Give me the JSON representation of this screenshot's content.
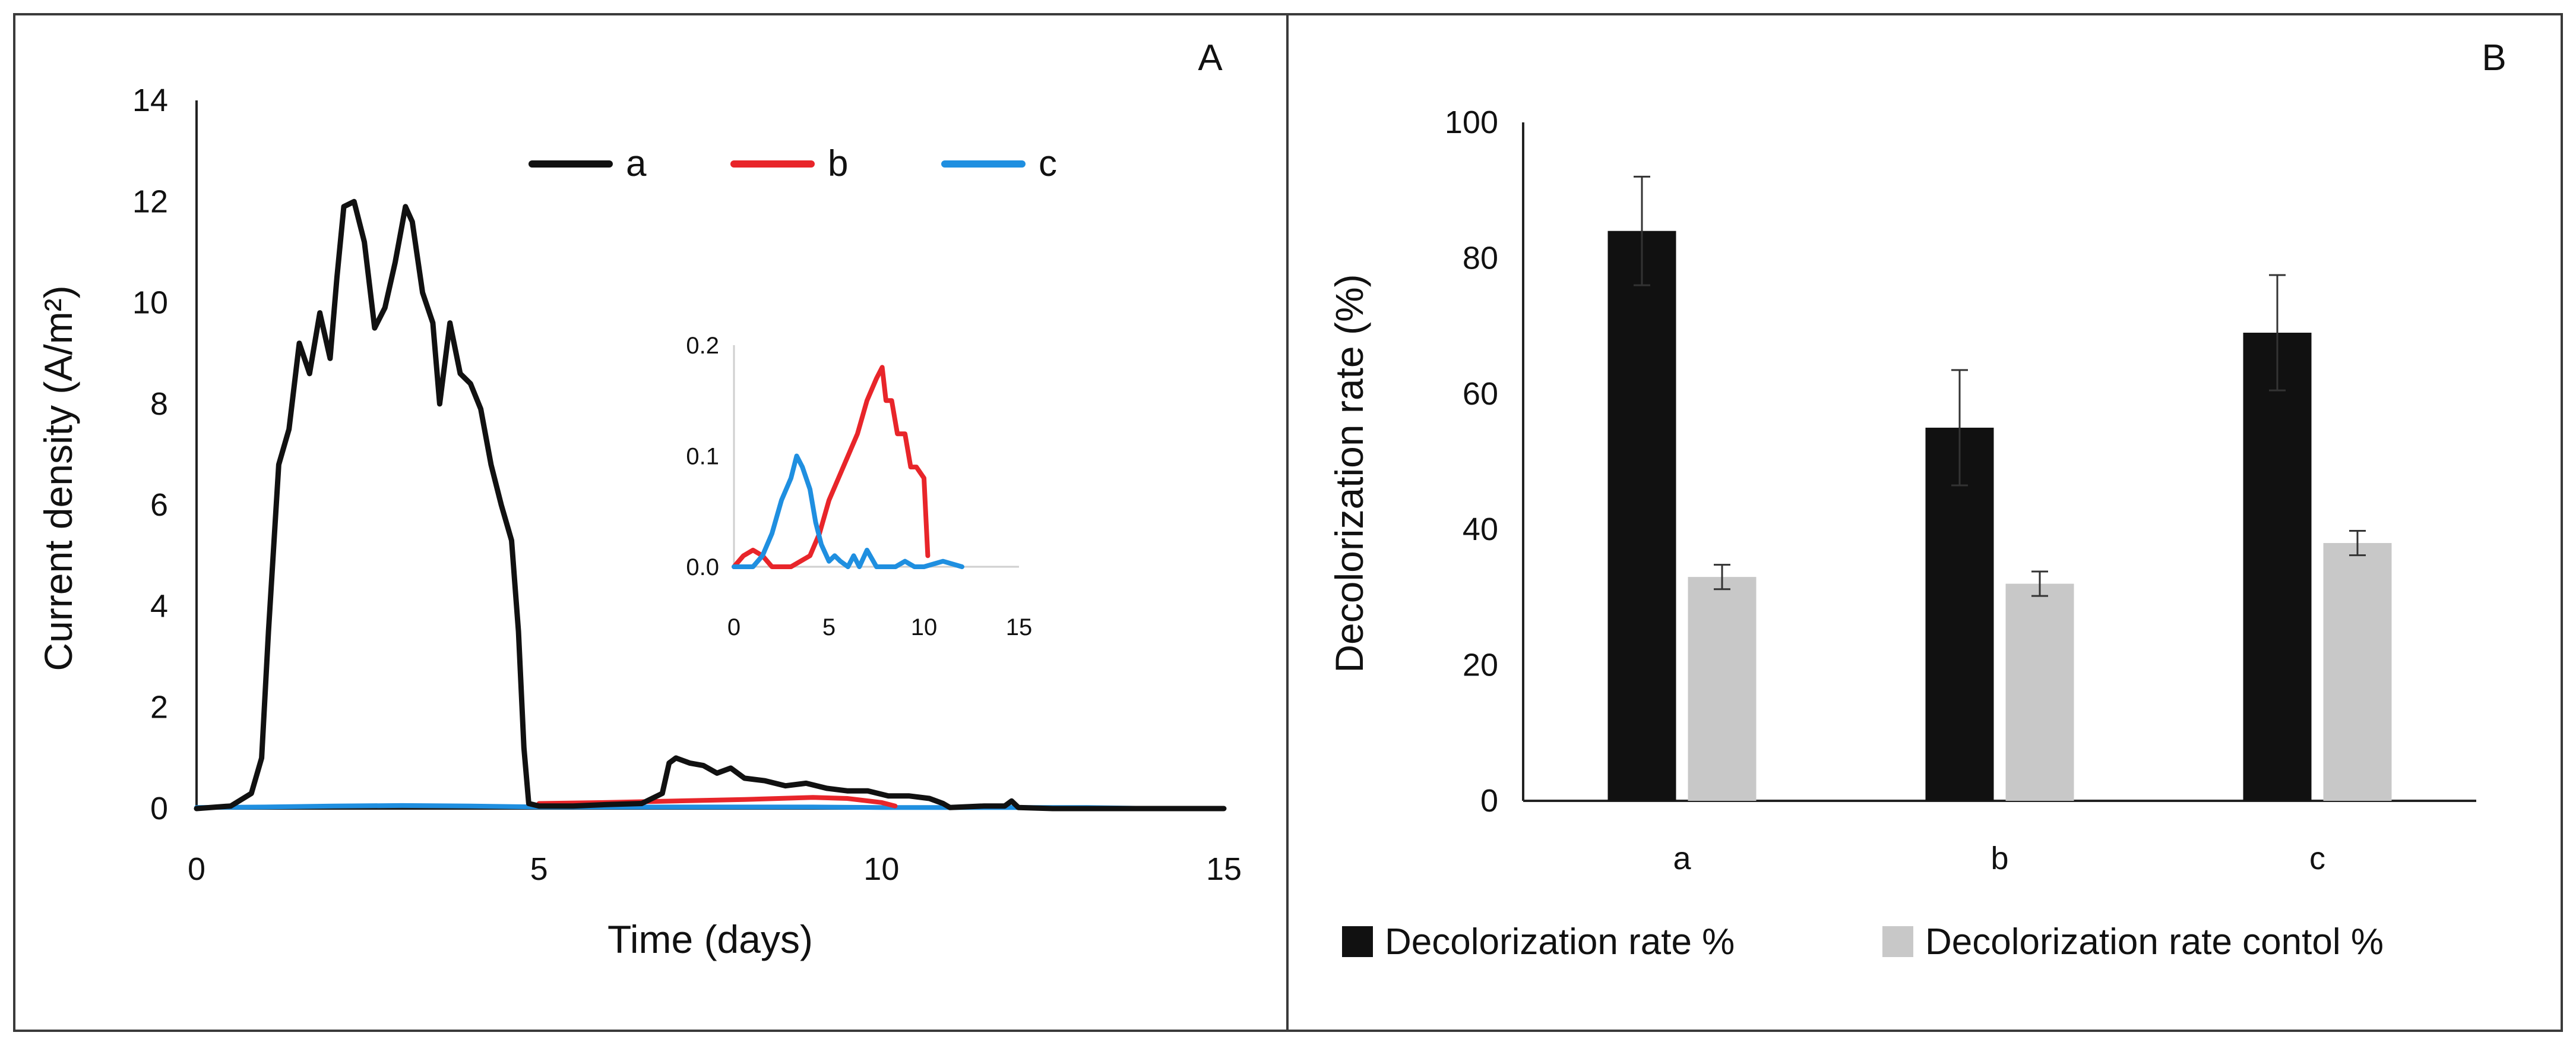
{
  "colors": {
    "a": "#111111",
    "b": "#e8252a",
    "c": "#1f8fe0",
    "control": "#c8c8c8",
    "axis": "#222222"
  },
  "chart_data": [
    {
      "panel": "A",
      "type": "line",
      "xlabel": "Time (days)",
      "ylabel": "Current density (A/m²)",
      "xlim": [
        0,
        15
      ],
      "ylim": [
        0,
        14
      ],
      "xticks": [
        "0",
        "5",
        "10",
        "15"
      ],
      "yticks": [
        "0",
        "2",
        "4",
        "6",
        "8",
        "10",
        "12",
        "14"
      ],
      "legend": [
        "a",
        "b",
        "c"
      ],
      "series": [
        {
          "name": "a",
          "color": "#111111",
          "x": [
            0,
            0.5,
            0.8,
            0.95,
            1.05,
            1.2,
            1.35,
            1.5,
            1.65,
            1.8,
            1.95,
            2.05,
            2.15,
            2.3,
            2.45,
            2.6,
            2.75,
            2.9,
            3.05,
            3.15,
            3.3,
            3.45,
            3.55,
            3.7,
            3.85,
            4.0,
            4.15,
            4.3,
            4.45,
            4.6,
            4.7,
            4.78,
            4.85,
            5.0,
            5.5,
            6.0,
            6.5,
            6.8,
            6.9,
            7.0,
            7.2,
            7.4,
            7.6,
            7.8,
            8.0,
            8.3,
            8.6,
            8.9,
            9.2,
            9.5,
            9.8,
            10.1,
            10.4,
            10.7,
            10.9,
            11.0,
            11.5,
            11.8,
            11.9,
            12.0,
            12.5,
            15
          ],
          "y": [
            0,
            0.05,
            0.3,
            1.0,
            3.5,
            6.8,
            7.5,
            9.2,
            8.6,
            9.8,
            8.9,
            10.5,
            11.9,
            12.0,
            11.2,
            9.5,
            9.9,
            10.8,
            11.9,
            11.6,
            10.2,
            9.6,
            8.0,
            9.6,
            8.6,
            8.4,
            7.9,
            6.8,
            6.0,
            5.3,
            3.5,
            1.2,
            0.1,
            0.05,
            0.05,
            0.08,
            0.1,
            0.3,
            0.9,
            1.0,
            0.9,
            0.85,
            0.7,
            0.8,
            0.6,
            0.55,
            0.45,
            0.5,
            0.4,
            0.35,
            0.35,
            0.25,
            0.25,
            0.2,
            0.1,
            0.02,
            0.05,
            0.05,
            0.15,
            0.02,
            0.0,
            0.0
          ]
        },
        {
          "name": "b",
          "color": "#e8252a",
          "x": [
            5,
            6,
            7,
            8,
            8.5,
            9,
            9.5,
            10,
            10.2
          ],
          "y": [
            0.1,
            0.12,
            0.15,
            0.18,
            0.2,
            0.22,
            0.2,
            0.12,
            0.05
          ]
        },
        {
          "name": "c",
          "color": "#1f8fe0",
          "x": [
            0,
            1,
            2,
            3,
            4,
            5,
            6,
            7,
            8,
            9,
            10,
            11,
            12,
            13,
            14,
            15
          ],
          "y": [
            0.02,
            0.03,
            0.05,
            0.06,
            0.05,
            0.03,
            0.03,
            0.03,
            0.03,
            0.03,
            0.02,
            0.02,
            0.02,
            0.02,
            0.0,
            0.0
          ]
        }
      ],
      "inset": {
        "xlim": [
          0,
          15
        ],
        "ylim": [
          0,
          0.2
        ],
        "xticks": [
          "0",
          "5",
          "10",
          "15"
        ],
        "yticks": [
          "0.0",
          "0.1",
          "0.2"
        ],
        "series": [
          {
            "name": "b",
            "color": "#e8252a",
            "x": [
              0,
              0.5,
              1.0,
              1.5,
              2.0,
              3.0,
              4.0,
              4.5,
              5.0,
              5.5,
              6.0,
              6.5,
              7.0,
              7.5,
              7.8,
              8.0,
              8.3,
              8.6,
              9.0,
              9.3,
              9.6,
              10.0,
              10.2
            ],
            "y": [
              0.0,
              0.01,
              0.015,
              0.01,
              0.0,
              0.0,
              0.01,
              0.03,
              0.06,
              0.08,
              0.1,
              0.12,
              0.15,
              0.17,
              0.18,
              0.15,
              0.15,
              0.12,
              0.12,
              0.09,
              0.09,
              0.08,
              0.01
            ]
          },
          {
            "name": "c",
            "color": "#1f8fe0",
            "x": [
              0,
              1.0,
              1.5,
              2.0,
              2.5,
              3.0,
              3.3,
              3.6,
              4.0,
              4.3,
              4.6,
              5.0,
              5.3,
              5.6,
              6.0,
              6.3,
              6.6,
              7.0,
              7.5,
              8.0,
              8.5,
              9.0,
              9.5,
              10.0,
              11.0,
              12.0
            ],
            "y": [
              0.0,
              0.0,
              0.01,
              0.03,
              0.06,
              0.08,
              0.1,
              0.09,
              0.07,
              0.04,
              0.02,
              0.005,
              0.01,
              0.005,
              0.0,
              0.01,
              0.0,
              0.015,
              0.0,
              0.0,
              0.0,
              0.005,
              0.0,
              0.0,
              0.005,
              0.0
            ]
          }
        ]
      }
    },
    {
      "panel": "B",
      "type": "bar",
      "categories": [
        "a",
        "b",
        "c"
      ],
      "ylabel": "Decolorization rate (%)",
      "ylim": [
        0,
        100
      ],
      "yticks": [
        "0",
        "20",
        "40",
        "60",
        "80",
        "100"
      ],
      "series": [
        {
          "name": "Decolorization rate %",
          "color": "#111111",
          "values": [
            84,
            55,
            69
          ],
          "errors": [
            8,
            8.5,
            8.5
          ]
        },
        {
          "name": "Decolorization rate contol %",
          "color": "#c8c8c8",
          "values": [
            33,
            32,
            38
          ],
          "errors": [
            1.8,
            1.8,
            1.8
          ]
        }
      ]
    }
  ]
}
